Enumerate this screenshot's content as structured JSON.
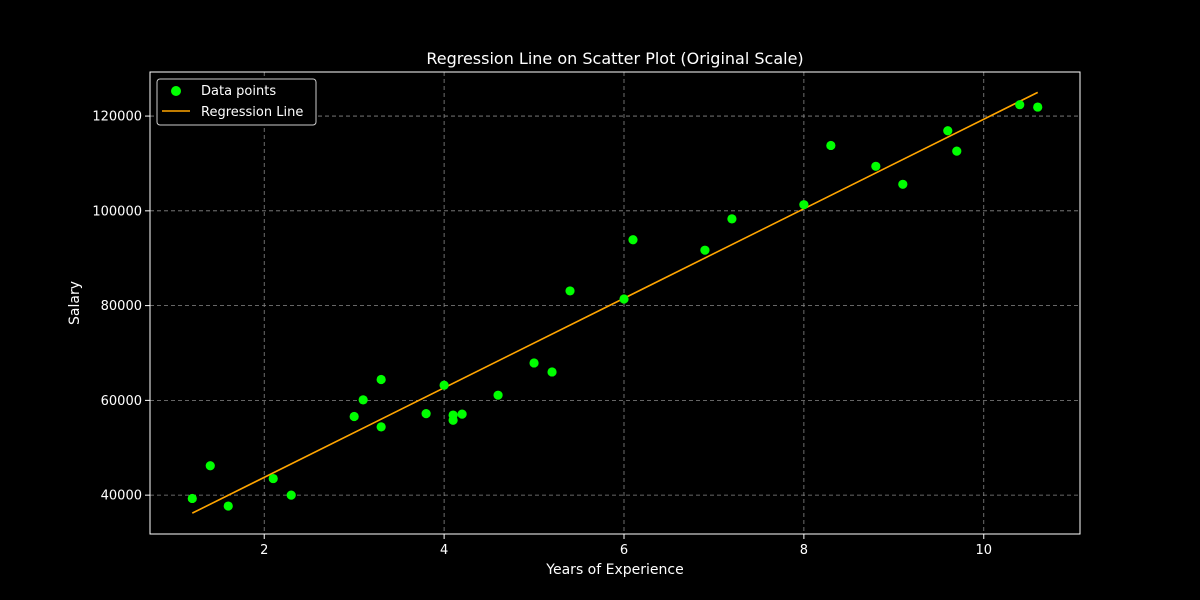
{
  "chart_data": {
    "type": "scatter",
    "title": "Regression Line on Scatter Plot (Original Scale)",
    "xlabel": "Years of Experience",
    "ylabel": "Salary",
    "xlim": [
      0.73,
      11.07
    ],
    "ylim": [
      31800,
      129300
    ],
    "xticks": [
      2,
      4,
      6,
      8,
      10
    ],
    "yticks": [
      40000,
      60000,
      80000,
      100000,
      120000
    ],
    "xtick_labels": [
      "2",
      "4",
      "6",
      "8",
      "10"
    ],
    "ytick_labels": [
      "40000",
      "60000",
      "80000",
      "100000",
      "120000"
    ],
    "grid": true,
    "legend_position": "upper-left",
    "colors": {
      "background": "#000000",
      "points": "#00ff00",
      "line": "#ffa500",
      "grid": "#888888",
      "axes": "#ffffff"
    },
    "series": [
      {
        "name": "Data points",
        "kind": "scatter",
        "x": [
          1.2,
          1.4,
          1.6,
          2.1,
          2.3,
          3.0,
          3.1,
          3.3,
          3.3,
          3.8,
          4.0,
          4.1,
          4.1,
          4.2,
          4.6,
          5.0,
          5.2,
          5.4,
          6.0,
          6.1,
          6.9,
          7.2,
          8.0,
          8.3,
          8.8,
          9.1,
          9.6,
          9.7,
          10.4,
          10.6
        ],
        "y": [
          39300,
          46200,
          37700,
          43500,
          40000,
          56600,
          60100,
          54400,
          64400,
          57200,
          63200,
          55800,
          56900,
          57100,
          61100,
          67900,
          66000,
          83100,
          81400,
          93900,
          91700,
          98300,
          101300,
          113800,
          109400,
          105600,
          116900,
          112600,
          122400,
          121900
        ]
      },
      {
        "name": "Regression Line",
        "kind": "line",
        "x": [
          1.2,
          10.6
        ],
        "y": [
          36200,
          125000
        ]
      }
    ]
  }
}
